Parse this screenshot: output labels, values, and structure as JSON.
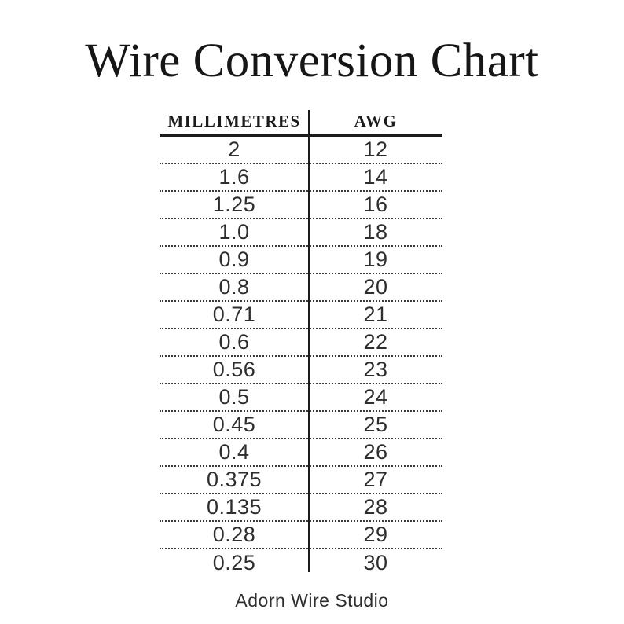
{
  "page": {
    "title": "Wire Conversion Chart",
    "footer": "Adorn Wire Studio"
  },
  "chart_data": {
    "type": "table",
    "title": "Wire Conversion Chart",
    "columns": [
      "MILLIMETRES",
      "AWG"
    ],
    "rows": [
      [
        "2",
        "12"
      ],
      [
        "1.6",
        "14"
      ],
      [
        "1.25",
        "16"
      ],
      [
        "1.0",
        "18"
      ],
      [
        "0.9",
        "19"
      ],
      [
        "0.8",
        "20"
      ],
      [
        "0.71",
        "21"
      ],
      [
        "0.6",
        "22"
      ],
      [
        "0.56",
        "23"
      ],
      [
        "0.5",
        "24"
      ],
      [
        "0.45",
        "25"
      ],
      [
        "0.4",
        "26"
      ],
      [
        "0.375",
        "27"
      ],
      [
        "0.135",
        "28"
      ],
      [
        "0.28",
        "29"
      ],
      [
        "0.25",
        "30"
      ]
    ],
    "footer": "Adorn Wire Studio"
  },
  "colors": {
    "background": "#ffffff",
    "ink": "#1b1b1b",
    "value_text": "#2e2e2e",
    "dotted_line": "#3a3a3a"
  }
}
